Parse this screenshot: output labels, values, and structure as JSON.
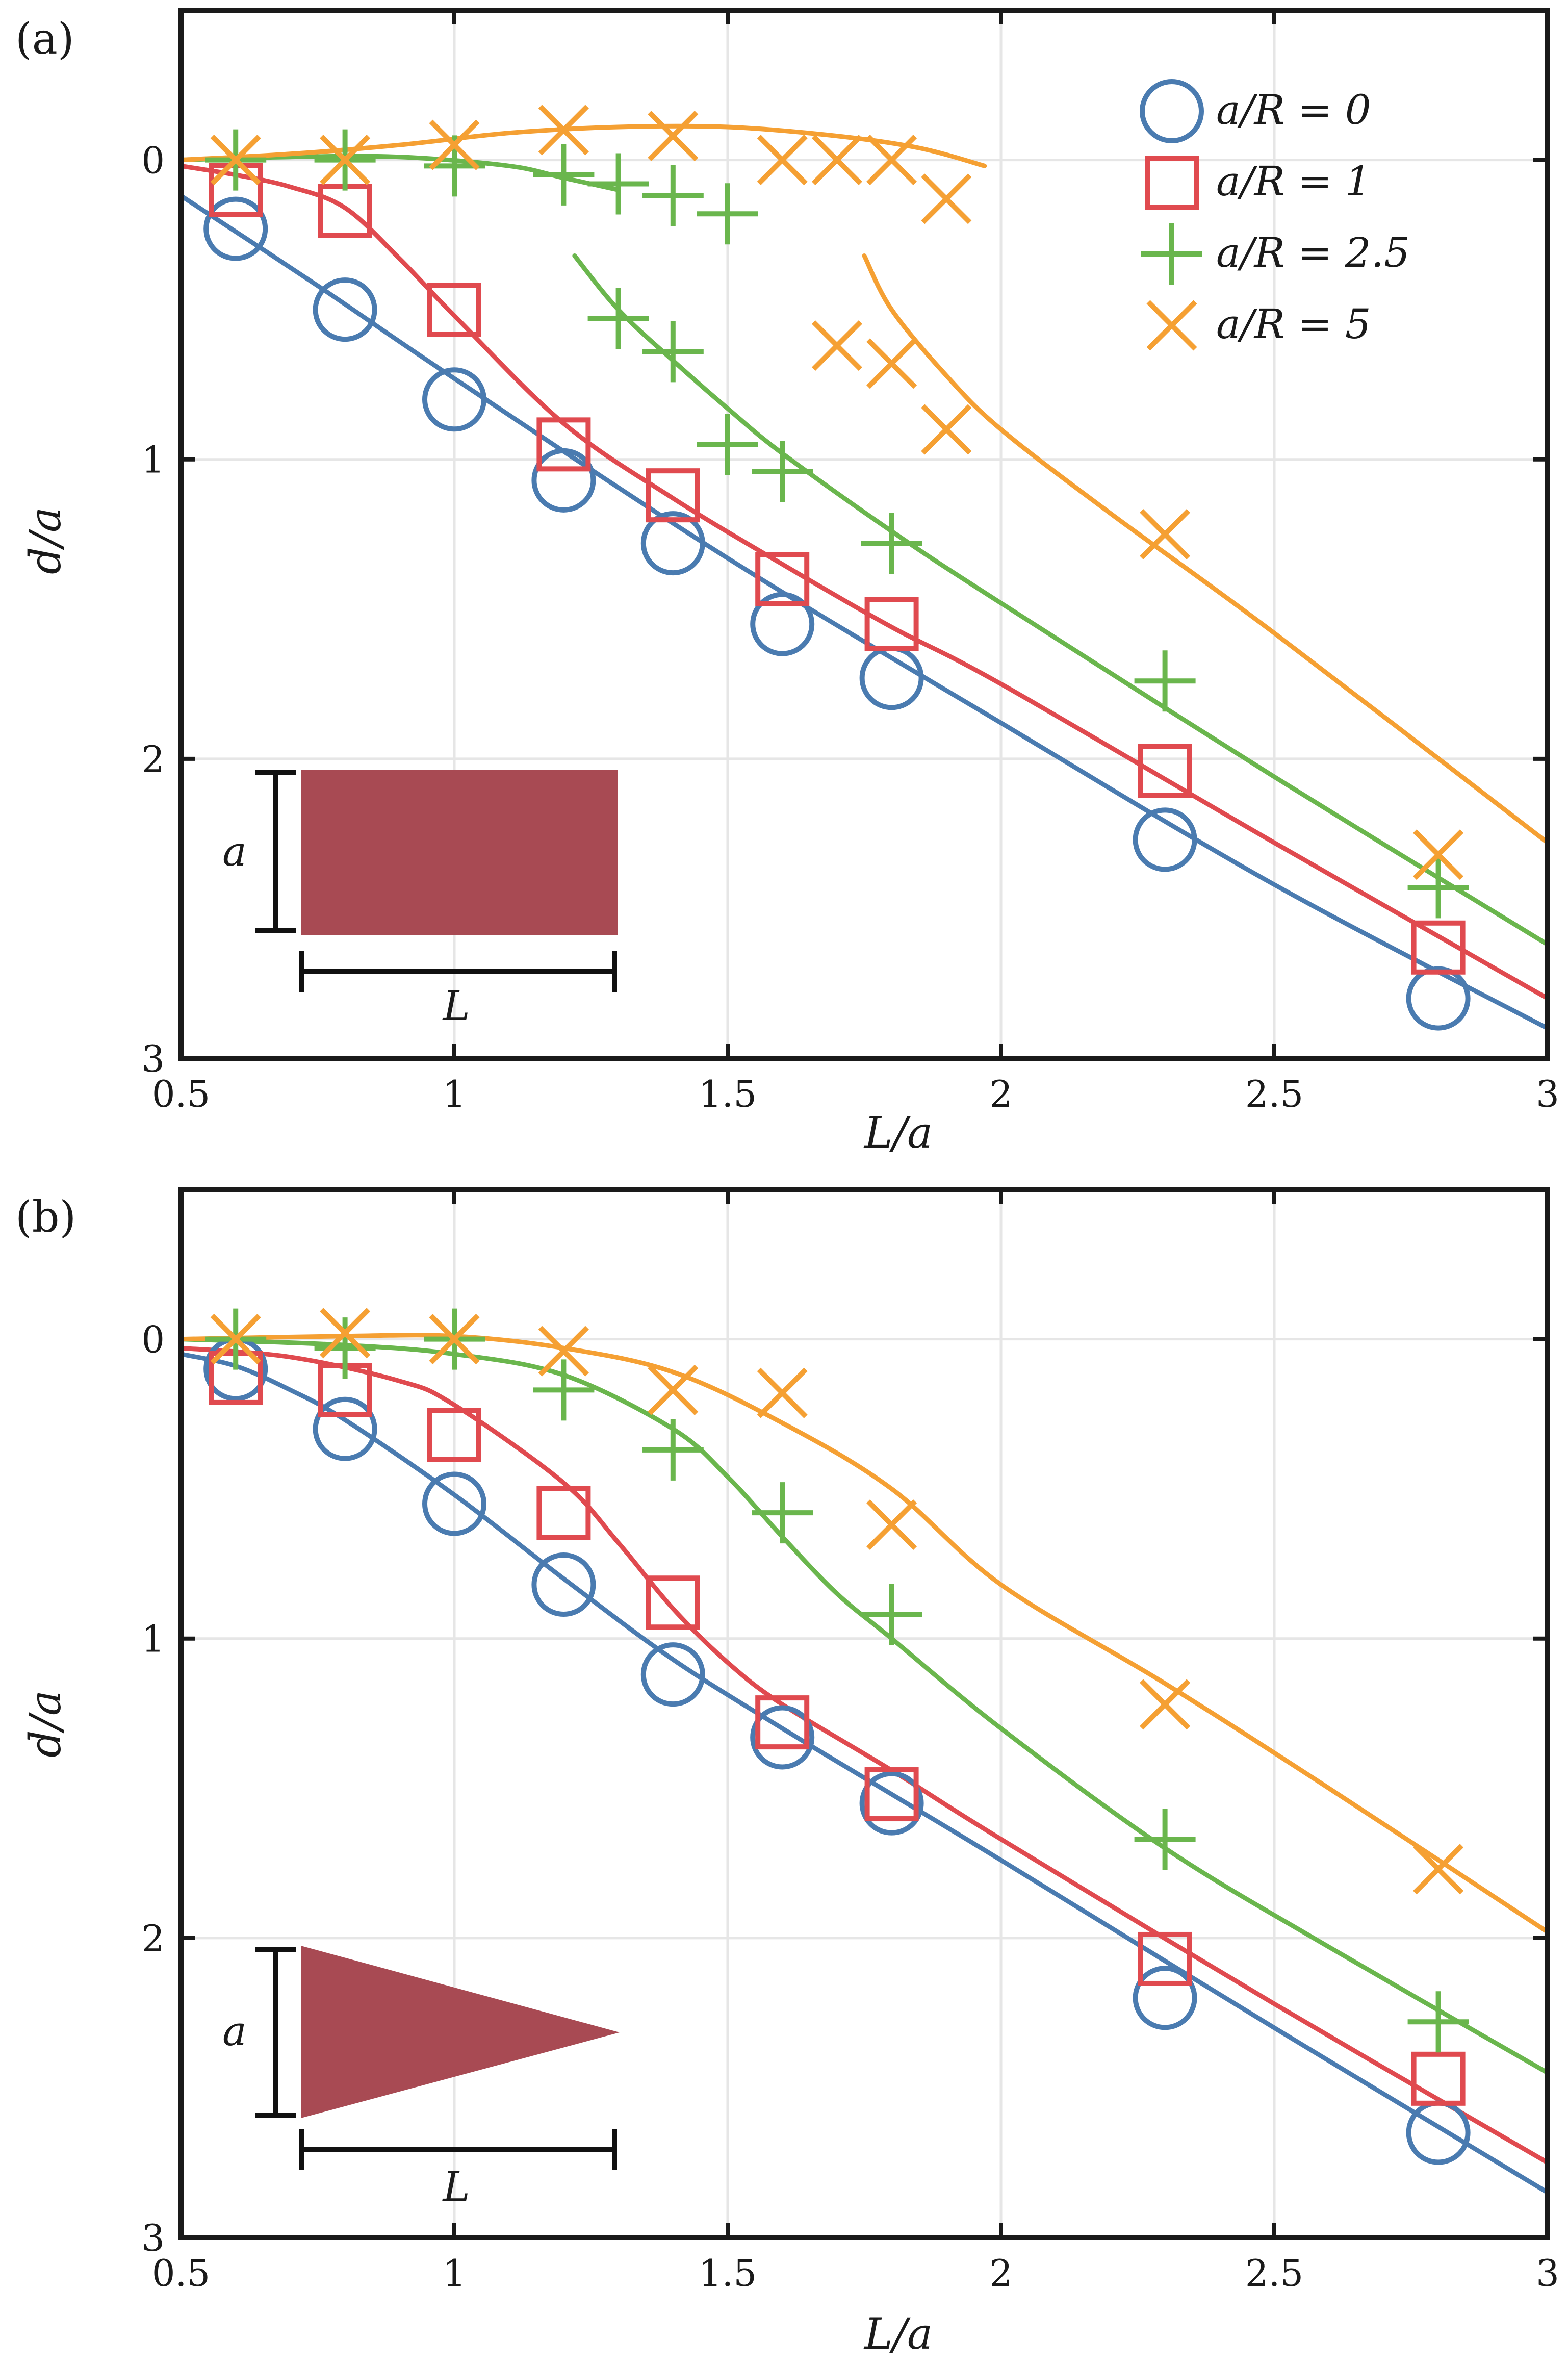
{
  "colors": {
    "blue": "#4A7BB0",
    "red": "#E04A4F",
    "green": "#6AB64D",
    "orange": "#F5A033",
    "inset_fill": "#A84A53",
    "axis": "#1a1a1a",
    "grid": "#e6e6e6"
  },
  "legend": {
    "entries": [
      {
        "label": "a/R = 0",
        "marker": "circle",
        "color": "blue"
      },
      {
        "label": "a/R = 1",
        "marker": "square",
        "color": "red"
      },
      {
        "label": "a/R = 2.5",
        "marker": "plus",
        "color": "green"
      },
      {
        "label": "a/R = 5",
        "marker": "x",
        "color": "orange"
      }
    ]
  },
  "chart_data": [
    {
      "panel_label": "(a)",
      "type": "scatter",
      "xlabel": "L/a",
      "ylabel": "d/a",
      "xlim": [
        0.5,
        3
      ],
      "ylim": [
        -0.5,
        3
      ],
      "y_inverted": true,
      "xticks": [
        "0.5",
        "1",
        "1.5",
        "2",
        "2.5",
        "3"
      ],
      "yticks": [
        "0",
        "1",
        "2",
        "3"
      ],
      "grid": true,
      "legend_position": "top-right",
      "inset": {
        "shape": "rectangle",
        "height_label": "a",
        "length_label": "L"
      },
      "series": [
        {
          "name": "a/R = 0",
          "marker": "circle",
          "color": "blue",
          "points": [
            [
              0.6,
              0.23
            ],
            [
              0.8,
              0.5
            ],
            [
              1.0,
              0.8
            ],
            [
              1.2,
              1.07
            ],
            [
              1.4,
              1.28
            ],
            [
              1.6,
              1.55
            ],
            [
              1.8,
              1.73
            ],
            [
              2.3,
              2.27
            ],
            [
              2.8,
              2.8
            ]
          ],
          "fit": [
            [
              0.5,
              0.12
            ],
            [
              0.75,
              0.42
            ],
            [
              1.0,
              0.73
            ],
            [
              1.5,
              1.33
            ],
            [
              2.0,
              1.88
            ],
            [
              2.5,
              2.42
            ],
            [
              3.0,
              2.9
            ]
          ]
        },
        {
          "name": "a/R = 1",
          "marker": "square",
          "color": "red",
          "points": [
            [
              0.6,
              0.1
            ],
            [
              0.8,
              0.17
            ],
            [
              1.0,
              0.5
            ],
            [
              1.2,
              0.95
            ],
            [
              1.4,
              1.12
            ],
            [
              1.6,
              1.4
            ],
            [
              1.8,
              1.55
            ],
            [
              2.3,
              2.04
            ],
            [
              2.8,
              2.63
            ]
          ],
          "fit": [
            [
              0.5,
              0.02
            ],
            [
              0.6,
              0.05
            ],
            [
              0.7,
              0.09
            ],
            [
              0.8,
              0.16
            ],
            [
              0.9,
              0.33
            ],
            [
              1.0,
              0.52
            ],
            [
              1.2,
              0.88
            ],
            [
              1.4,
              1.13
            ],
            [
              1.6,
              1.35
            ],
            [
              1.8,
              1.56
            ],
            [
              2.0,
              1.75
            ],
            [
              2.5,
              2.28
            ],
            [
              3.0,
              2.8
            ]
          ]
        },
        {
          "name": "a/R = 2.5",
          "marker": "plus",
          "color": "green",
          "points": [
            [
              0.6,
              0.0
            ],
            [
              0.8,
              0.0
            ],
            [
              1.0,
              0.02
            ],
            [
              1.2,
              0.05
            ],
            [
              1.3,
              0.08
            ],
            [
              1.4,
              0.12
            ],
            [
              1.5,
              0.18
            ],
            [
              1.3,
              0.53
            ],
            [
              1.4,
              0.64
            ],
            [
              1.5,
              0.95
            ],
            [
              1.6,
              1.04
            ],
            [
              1.8,
              1.28
            ],
            [
              2.3,
              1.74
            ],
            [
              2.8,
              2.43
            ]
          ],
          "fit": [
            [
              0.5,
              0.0
            ],
            [
              0.7,
              -0.01
            ],
            [
              0.9,
              -0.01
            ],
            [
              1.1,
              0.02
            ],
            [
              1.2,
              0.06
            ],
            [
              1.3,
              0.1
            ]
          ],
          "fit2": [
            [
              1.22,
              0.32
            ],
            [
              1.3,
              0.5
            ],
            [
              1.4,
              0.67
            ],
            [
              1.5,
              0.83
            ],
            [
              1.6,
              0.98
            ],
            [
              1.8,
              1.24
            ],
            [
              2.0,
              1.48
            ],
            [
              2.5,
              2.06
            ],
            [
              3.0,
              2.62
            ]
          ]
        },
        {
          "name": "a/R = 5",
          "marker": "x",
          "color": "orange",
          "points": [
            [
              0.6,
              0.0
            ],
            [
              0.8,
              0.0
            ],
            [
              1.0,
              -0.05
            ],
            [
              1.2,
              -0.1
            ],
            [
              1.4,
              -0.08
            ],
            [
              1.6,
              0.0
            ],
            [
              1.7,
              0.0
            ],
            [
              1.8,
              0.0
            ],
            [
              1.9,
              0.13
            ],
            [
              1.7,
              0.62
            ],
            [
              1.8,
              0.68
            ],
            [
              1.9,
              0.9
            ],
            [
              2.3,
              1.25
            ],
            [
              2.8,
              2.32
            ]
          ],
          "fit": [
            [
              0.5,
              0.0
            ],
            [
              0.7,
              -0.02
            ],
            [
              0.9,
              -0.05
            ],
            [
              1.1,
              -0.09
            ],
            [
              1.3,
              -0.11
            ],
            [
              1.5,
              -0.11
            ],
            [
              1.7,
              -0.08
            ],
            [
              1.85,
              -0.04
            ],
            [
              1.97,
              0.02
            ]
          ],
          "fit2": [
            [
              1.75,
              0.32
            ],
            [
              1.8,
              0.5
            ],
            [
              1.9,
              0.72
            ],
            [
              2.0,
              0.9
            ],
            [
              2.2,
              1.18
            ],
            [
              2.5,
              1.58
            ],
            [
              3.0,
              2.28
            ]
          ]
        }
      ]
    },
    {
      "panel_label": "(b)",
      "type": "scatter",
      "xlabel": "L/a",
      "ylabel": "d/a",
      "xlim": [
        0.5,
        3
      ],
      "ylim": [
        -0.5,
        3
      ],
      "y_inverted": true,
      "xticks": [
        "0.5",
        "1",
        "1.5",
        "2",
        "2.5",
        "3"
      ],
      "yticks": [
        "0",
        "1",
        "2",
        "3"
      ],
      "grid": true,
      "inset": {
        "shape": "triangle",
        "height_label": "a",
        "length_label": "L"
      },
      "series": [
        {
          "name": "a/R = 0",
          "marker": "circle",
          "color": "blue",
          "points": [
            [
              0.6,
              0.1
            ],
            [
              0.8,
              0.3
            ],
            [
              1.0,
              0.55
            ],
            [
              1.2,
              0.82
            ],
            [
              1.4,
              1.12
            ],
            [
              1.6,
              1.33
            ],
            [
              1.8,
              1.55
            ],
            [
              2.3,
              2.2
            ],
            [
              2.8,
              2.65
            ]
          ],
          "fit": [
            [
              0.5,
              0.05
            ],
            [
              0.6,
              0.09
            ],
            [
              0.7,
              0.17
            ],
            [
              0.8,
              0.27
            ],
            [
              1.0,
              0.52
            ],
            [
              1.2,
              0.8
            ],
            [
              1.4,
              1.07
            ],
            [
              1.6,
              1.3
            ],
            [
              1.8,
              1.52
            ],
            [
              2.0,
              1.74
            ],
            [
              2.5,
              2.3
            ],
            [
              3.0,
              2.85
            ]
          ]
        },
        {
          "name": "a/R = 1",
          "marker": "square",
          "color": "red",
          "points": [
            [
              0.6,
              0.13
            ],
            [
              0.8,
              0.17
            ],
            [
              1.0,
              0.32
            ],
            [
              1.2,
              0.58
            ],
            [
              1.4,
              0.88
            ],
            [
              1.6,
              1.28
            ],
            [
              1.8,
              1.52
            ],
            [
              2.3,
              2.07
            ],
            [
              2.8,
              2.47
            ]
          ],
          "fit": [
            [
              0.5,
              0.03
            ],
            [
              0.7,
              0.06
            ],
            [
              0.9,
              0.14
            ],
            [
              1.0,
              0.22
            ],
            [
              1.2,
              0.48
            ],
            [
              1.3,
              0.68
            ],
            [
              1.4,
              0.9
            ],
            [
              1.5,
              1.08
            ],
            [
              1.6,
              1.22
            ],
            [
              1.8,
              1.44
            ],
            [
              2.0,
              1.67
            ],
            [
              2.5,
              2.22
            ],
            [
              3.0,
              2.75
            ]
          ]
        },
        {
          "name": "a/R = 2.5",
          "marker": "plus",
          "color": "green",
          "points": [
            [
              0.6,
              0.0
            ],
            [
              0.8,
              0.03
            ],
            [
              1.0,
              0.0
            ],
            [
              1.2,
              0.17
            ],
            [
              1.4,
              0.37
            ],
            [
              1.6,
              0.58
            ],
            [
              1.8,
              0.92
            ],
            [
              2.3,
              1.67
            ],
            [
              2.8,
              2.28
            ]
          ],
          "fit": [
            [
              0.5,
              0.0
            ],
            [
              0.8,
              0.02
            ],
            [
              1.0,
              0.05
            ],
            [
              1.2,
              0.12
            ],
            [
              1.4,
              0.3
            ],
            [
              1.5,
              0.46
            ],
            [
              1.6,
              0.66
            ],
            [
              1.7,
              0.85
            ],
            [
              1.8,
              1.0
            ],
            [
              2.0,
              1.3
            ],
            [
              2.3,
              1.7
            ],
            [
              2.6,
              2.03
            ],
            [
              3.0,
              2.45
            ]
          ]
        },
        {
          "name": "a/R = 5",
          "marker": "x",
          "color": "orange",
          "points": [
            [
              0.6,
              0.0
            ],
            [
              0.8,
              -0.02
            ],
            [
              1.0,
              0.0
            ],
            [
              1.2,
              0.04
            ],
            [
              1.4,
              0.17
            ],
            [
              1.6,
              0.18
            ],
            [
              1.8,
              0.62
            ],
            [
              2.3,
              1.22
            ],
            [
              2.8,
              1.77
            ]
          ],
          "fit": [
            [
              0.5,
              0.0
            ],
            [
              0.8,
              -0.01
            ],
            [
              1.0,
              -0.01
            ],
            [
              1.2,
              0.03
            ],
            [
              1.4,
              0.11
            ],
            [
              1.6,
              0.28
            ],
            [
              1.8,
              0.5
            ],
            [
              2.0,
              0.82
            ],
            [
              2.3,
              1.15
            ],
            [
              2.6,
              1.5
            ],
            [
              3.0,
              1.98
            ]
          ]
        }
      ]
    }
  ]
}
